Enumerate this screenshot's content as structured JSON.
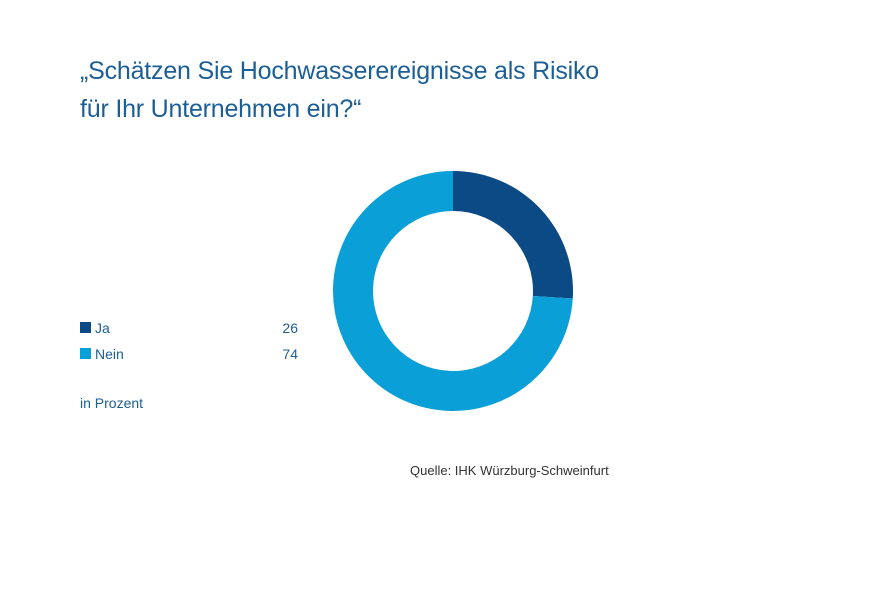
{
  "title": {
    "line1": "„Schätzen Sie Hochwasserereignisse als Risiko",
    "line2": "für Ihr Unternehmen ein?“"
  },
  "unit_label": "in Prozent",
  "source": "Quelle: IHK Würzburg-Schweinfurt",
  "colors": {
    "title": "#1c5e96",
    "ja": "#0b4a85",
    "nein": "#0a9fd6"
  },
  "legend": [
    {
      "label": "Ja",
      "value": "26"
    },
    {
      "label": "Nein",
      "value": "74"
    }
  ],
  "chart_data": {
    "type": "pie",
    "variant": "donut",
    "title": "„Schätzen Sie Hochwasserereignisse als Risiko für Ihr Unternehmen ein?“",
    "unit": "in Prozent",
    "categories": [
      "Ja",
      "Nein"
    ],
    "values": [
      26,
      74
    ],
    "colors": [
      "#0b4a85",
      "#0a9fd6"
    ],
    "legend_position": "left"
  }
}
